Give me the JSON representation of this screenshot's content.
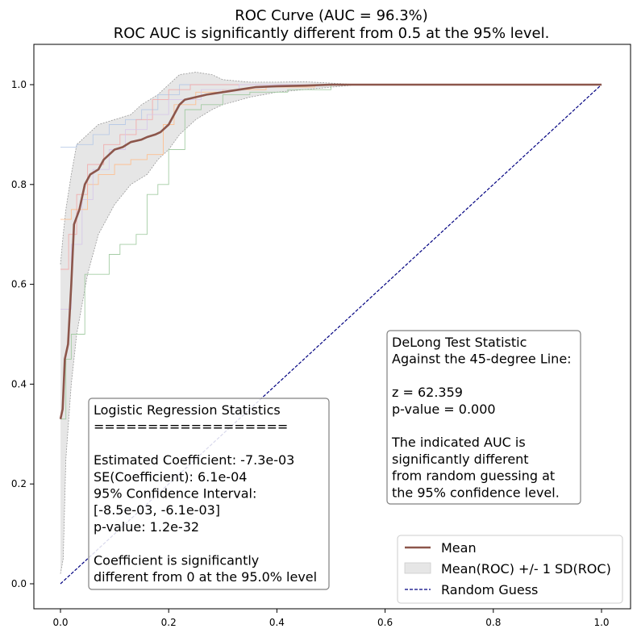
{
  "chart_data": {
    "type": "line",
    "title": "ROC Curve (AUC = 96.3%)",
    "subtitle": "ROC AUC is significantly different from 0.5 at the 95% level.",
    "xlabel": "",
    "ylabel": "",
    "xlim": [
      -0.05,
      1.05
    ],
    "ylim": [
      -0.05,
      1.08
    ],
    "x_ticks": [
      0.0,
      0.2,
      0.4,
      0.6,
      0.8,
      1.0
    ],
    "x_tick_labels": [
      "0.0",
      "0.2",
      "0.4",
      "0.6",
      "0.8",
      "1.0"
    ],
    "y_ticks": [
      0.0,
      0.2,
      0.4,
      0.6,
      0.8,
      1.0
    ],
    "y_tick_labels": [
      "0.0",
      "0.2",
      "0.4",
      "0.6",
      "0.8",
      "1.0"
    ],
    "grid": false,
    "legend_position": "bottom-right",
    "series": [
      {
        "name": "Mean",
        "kind": "line",
        "color": "#8c564b",
        "points": [
          [
            0,
            0.33
          ],
          [
            0.004,
            0.35
          ],
          [
            0.008,
            0.45
          ],
          [
            0.014,
            0.48
          ],
          [
            0.02,
            0.6
          ],
          [
            0.025,
            0.72
          ],
          [
            0.035,
            0.75
          ],
          [
            0.045,
            0.8
          ],
          [
            0.055,
            0.82
          ],
          [
            0.07,
            0.83
          ],
          [
            0.08,
            0.85
          ],
          [
            0.09,
            0.86
          ],
          [
            0.1,
            0.87
          ],
          [
            0.115,
            0.875
          ],
          [
            0.13,
            0.885
          ],
          [
            0.15,
            0.89
          ],
          [
            0.16,
            0.895
          ],
          [
            0.175,
            0.9
          ],
          [
            0.185,
            0.905
          ],
          [
            0.2,
            0.92
          ],
          [
            0.21,
            0.94
          ],
          [
            0.22,
            0.96
          ],
          [
            0.23,
            0.97
          ],
          [
            0.25,
            0.975
          ],
          [
            0.27,
            0.98
          ],
          [
            0.3,
            0.985
          ],
          [
            0.33,
            0.99
          ],
          [
            0.36,
            0.995
          ],
          [
            0.4,
            0.997
          ],
          [
            0.45,
            0.998
          ],
          [
            0.5,
            1.0
          ],
          [
            1.0,
            1.0
          ]
        ]
      },
      {
        "name": "Mean(ROC) +/- 1 SD(ROC)",
        "kind": "band",
        "color": "#d9d9d9",
        "upper": [
          [
            0,
            0.64
          ],
          [
            0.005,
            0.7
          ],
          [
            0.01,
            0.75
          ],
          [
            0.02,
            0.82
          ],
          [
            0.03,
            0.88
          ],
          [
            0.05,
            0.9
          ],
          [
            0.07,
            0.92
          ],
          [
            0.1,
            0.93
          ],
          [
            0.13,
            0.94
          ],
          [
            0.15,
            0.96
          ],
          [
            0.18,
            0.98
          ],
          [
            0.2,
            1.0
          ],
          [
            0.22,
            1.02
          ],
          [
            0.25,
            1.025
          ],
          [
            0.28,
            1.02
          ],
          [
            0.3,
            1.01
          ],
          [
            0.35,
            1.005
          ],
          [
            0.4,
            1.005
          ],
          [
            0.45,
            1.006
          ],
          [
            0.5,
            1.003
          ],
          [
            0.55,
            1.0
          ],
          [
            1.0,
            1.0
          ]
        ],
        "lower": [
          [
            0,
            0.02
          ],
          [
            0.005,
            0.05
          ],
          [
            0.01,
            0.25
          ],
          [
            0.02,
            0.4
          ],
          [
            0.03,
            0.5
          ],
          [
            0.05,
            0.62
          ],
          [
            0.07,
            0.7
          ],
          [
            0.1,
            0.76
          ],
          [
            0.13,
            0.8
          ],
          [
            0.16,
            0.82
          ],
          [
            0.18,
            0.85
          ],
          [
            0.2,
            0.87
          ],
          [
            0.22,
            0.9
          ],
          [
            0.25,
            0.93
          ],
          [
            0.28,
            0.95
          ],
          [
            0.3,
            0.96
          ],
          [
            0.35,
            0.975
          ],
          [
            0.4,
            0.985
          ],
          [
            0.45,
            0.99
          ],
          [
            0.5,
            0.995
          ],
          [
            0.55,
            1.0
          ],
          [
            1.0,
            1.0
          ]
        ]
      },
      {
        "name": "Random Guess",
        "kind": "dashed",
        "color": "#000080",
        "points": [
          [
            0,
            0
          ],
          [
            1,
            1
          ]
        ]
      }
    ],
    "fold_curves": [
      {
        "color": "#9bc89b",
        "points": [
          [
            0,
            0.33
          ],
          [
            0.01,
            0.33
          ],
          [
            0.01,
            0.45
          ],
          [
            0.02,
            0.45
          ],
          [
            0.02,
            0.5
          ],
          [
            0.045,
            0.5
          ],
          [
            0.045,
            0.62
          ],
          [
            0.09,
            0.62
          ],
          [
            0.09,
            0.66
          ],
          [
            0.11,
            0.66
          ],
          [
            0.11,
            0.68
          ],
          [
            0.14,
            0.68
          ],
          [
            0.14,
            0.7
          ],
          [
            0.16,
            0.7
          ],
          [
            0.16,
            0.78
          ],
          [
            0.18,
            0.78
          ],
          [
            0.18,
            0.8
          ],
          [
            0.2,
            0.8
          ],
          [
            0.2,
            0.87
          ],
          [
            0.23,
            0.87
          ],
          [
            0.23,
            0.95
          ],
          [
            0.26,
            0.95
          ],
          [
            0.26,
            0.96
          ],
          [
            0.3,
            0.96
          ],
          [
            0.3,
            0.98
          ],
          [
            0.35,
            0.98
          ],
          [
            0.35,
            0.985
          ],
          [
            0.42,
            0.985
          ],
          [
            0.42,
            0.99
          ],
          [
            0.5,
            0.99
          ],
          [
            0.5,
            1.0
          ],
          [
            1.0,
            1.0
          ]
        ]
      },
      {
        "color": "#ffbb88",
        "points": [
          [
            0,
            0.73
          ],
          [
            0.02,
            0.73
          ],
          [
            0.02,
            0.75
          ],
          [
            0.05,
            0.75
          ],
          [
            0.05,
            0.8
          ],
          [
            0.07,
            0.8
          ],
          [
            0.07,
            0.82
          ],
          [
            0.1,
            0.82
          ],
          [
            0.1,
            0.84
          ],
          [
            0.13,
            0.84
          ],
          [
            0.13,
            0.85
          ],
          [
            0.16,
            0.85
          ],
          [
            0.16,
            0.86
          ],
          [
            0.19,
            0.86
          ],
          [
            0.19,
            0.92
          ],
          [
            0.21,
            0.92
          ],
          [
            0.21,
            0.96
          ],
          [
            0.25,
            0.96
          ],
          [
            0.25,
            0.985
          ],
          [
            0.3,
            0.985
          ],
          [
            0.3,
            0.99
          ],
          [
            0.38,
            0.99
          ],
          [
            0.38,
            0.995
          ],
          [
            0.47,
            0.995
          ],
          [
            0.47,
            1.0
          ],
          [
            1.0,
            1.0
          ]
        ]
      },
      {
        "color": "#b4c8e6",
        "points": [
          [
            0,
            0.875
          ],
          [
            0.03,
            0.875
          ],
          [
            0.03,
            0.88
          ],
          [
            0.06,
            0.88
          ],
          [
            0.06,
            0.9
          ],
          [
            0.09,
            0.9
          ],
          [
            0.09,
            0.92
          ],
          [
            0.12,
            0.92
          ],
          [
            0.12,
            0.93
          ],
          [
            0.15,
            0.93
          ],
          [
            0.15,
            0.95
          ],
          [
            0.18,
            0.95
          ],
          [
            0.18,
            0.98
          ],
          [
            0.22,
            0.98
          ],
          [
            0.22,
            1.0
          ],
          [
            1.0,
            1.0
          ]
        ]
      },
      {
        "color": "#f2a6a6",
        "points": [
          [
            0,
            0.63
          ],
          [
            0.015,
            0.63
          ],
          [
            0.015,
            0.7
          ],
          [
            0.03,
            0.7
          ],
          [
            0.03,
            0.78
          ],
          [
            0.05,
            0.78
          ],
          [
            0.05,
            0.84
          ],
          [
            0.08,
            0.84
          ],
          [
            0.08,
            0.88
          ],
          [
            0.11,
            0.88
          ],
          [
            0.11,
            0.9
          ],
          [
            0.14,
            0.9
          ],
          [
            0.14,
            0.93
          ],
          [
            0.17,
            0.93
          ],
          [
            0.17,
            0.97
          ],
          [
            0.2,
            0.97
          ],
          [
            0.2,
            0.99
          ],
          [
            0.24,
            0.99
          ],
          [
            0.24,
            1.0
          ],
          [
            1.0,
            1.0
          ]
        ]
      },
      {
        "color": "#d6c5e8",
        "points": [
          [
            0,
            0.55
          ],
          [
            0.02,
            0.55
          ],
          [
            0.02,
            0.68
          ],
          [
            0.04,
            0.68
          ],
          [
            0.04,
            0.77
          ],
          [
            0.06,
            0.77
          ],
          [
            0.06,
            0.83
          ],
          [
            0.09,
            0.83
          ],
          [
            0.09,
            0.87
          ],
          [
            0.12,
            0.87
          ],
          [
            0.12,
            0.91
          ],
          [
            0.16,
            0.91
          ],
          [
            0.16,
            0.94
          ],
          [
            0.2,
            0.94
          ],
          [
            0.2,
            0.97
          ],
          [
            0.26,
            0.97
          ],
          [
            0.26,
            0.99
          ],
          [
            0.33,
            0.99
          ],
          [
            0.33,
            1.0
          ],
          [
            1.0,
            1.0
          ]
        ]
      }
    ],
    "annotations": {
      "left_box_lines": [
        "Logistic Regression Statistics",
        "==================",
        "",
        "Estimated Coefficient: -7.3e-03",
        "SE(Coefficient): 6.1e-04",
        "95% Confidence Interval:",
        "[-8.5e-03, -6.1e-03]",
        "p-value: 1.2e-32",
        "",
        "Coefficient is significantly",
        "different from 0 at the 95.0% level"
      ],
      "right_box_lines": [
        "DeLong Test Statistic",
        "Against the 45-degree Line:",
        "",
        "z = 62.359",
        "p-value = 0.000",
        "",
        "The indicated AUC is",
        "significantly different",
        "from random guessing at",
        "the 95% confidence level."
      ]
    }
  },
  "colors": {
    "mean": "#8c564b",
    "band_fill": "#e6e6e6",
    "band_edge": "#9a9a9a",
    "random": "#000080",
    "box_border": "#808080"
  }
}
